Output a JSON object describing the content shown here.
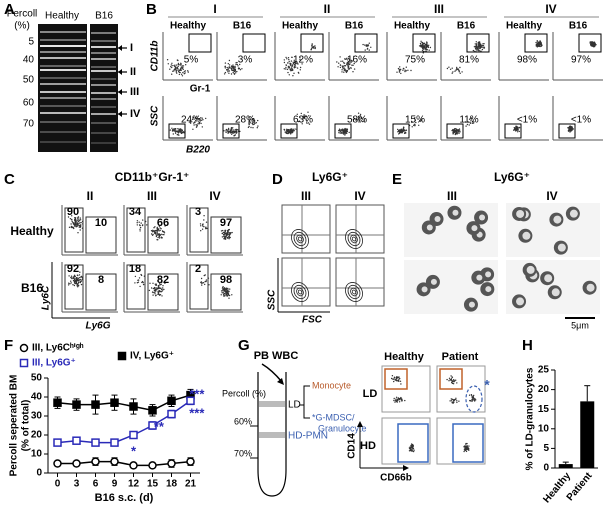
{
  "panel_labels": [
    "A",
    "B",
    "C",
    "D",
    "E",
    "F",
    "G",
    "H"
  ],
  "panel_a": {
    "axis_title": [
      "Percoll",
      "(%)"
    ],
    "percoll_levels": [
      5,
      40,
      50,
      60,
      70
    ],
    "columns": [
      "Healthy",
      "B16"
    ],
    "bands": [
      "I",
      "II",
      "III",
      "IV"
    ]
  },
  "panel_b": {
    "groups": [
      "I",
      "II",
      "III",
      "IV"
    ],
    "columns": [
      "Healthy",
      "B16"
    ],
    "top_axes": {
      "y": "CD11b",
      "x": "Gr-1"
    },
    "bottom_axes": {
      "y": "SSC",
      "x": "B220"
    },
    "top_percentages": [
      [
        "5%",
        "3%"
      ],
      [
        "12%",
        "16%"
      ],
      [
        "75%",
        "81%"
      ],
      [
        "98%",
        "97%"
      ]
    ],
    "bottom_percentages": [
      [
        "24%",
        "28%"
      ],
      [
        "63%",
        "58%"
      ],
      [
        "15%",
        "11%"
      ],
      [
        "<1%",
        "<1%"
      ]
    ]
  },
  "panel_c": {
    "title": "CD11b⁺Gr-1⁺",
    "columns": [
      "II",
      "III",
      "IV"
    ],
    "rows": [
      {
        "name": "Healthy",
        "values": [
          [
            90,
            10
          ],
          [
            34,
            66
          ],
          [
            3,
            97
          ]
        ]
      },
      {
        "name": "B16",
        "values": [
          [
            92,
            8
          ],
          [
            18,
            82
          ],
          [
            2,
            98
          ]
        ]
      }
    ],
    "axes": {
      "y": "Ly6C",
      "x": "Ly6G"
    }
  },
  "panel_d": {
    "title": "Ly6G⁺",
    "columns": [
      "III",
      "IV"
    ],
    "axes": {
      "y": "SSC",
      "x": "FSC"
    }
  },
  "panel_e": {
    "title": "Ly6G⁺",
    "columns": [
      "III",
      "IV"
    ],
    "scale_bar": "5μm"
  },
  "panel_g": {
    "source": "PB WBC",
    "percoll_label": "Percoll (%)",
    "levels": [
      "60%",
      "70%"
    ],
    "fractions": [
      "LD",
      "HD-PMN"
    ],
    "monocyte": "Monocyte",
    "gmdsc": [
      "*G-MDSC/",
      "Granulocyte"
    ],
    "columns": [
      "Healthy",
      "Patient"
    ],
    "rows": [
      "LD",
      "HD"
    ],
    "axes": {
      "y": "CD14",
      "x": "CD66b"
    },
    "marker": "*"
  },
  "chart_data": [
    {
      "type": "line",
      "xlabel": "B16 s.c. (d)",
      "ylabel": [
        "Percoll seperated BM",
        "(% of total)"
      ],
      "x": [
        0,
        3,
        6,
        9,
        12,
        15,
        18,
        21
      ],
      "xlim": [
        -1.5,
        22.5
      ],
      "xticks": [
        0,
        3,
        6,
        9,
        12,
        15,
        18,
        21
      ],
      "ylim": [
        0,
        50
      ],
      "yticks": [
        0,
        10,
        20,
        30,
        40,
        50
      ],
      "legend": "top",
      "series": [
        {
          "name": "III, Ly6Cʰⁱᵍʰ",
          "color": "#000000",
          "marker": "open-circle",
          "values": [
            5,
            5,
            6,
            6,
            4,
            4,
            5,
            6
          ],
          "errors": [
            1,
            1,
            2,
            2,
            1,
            1,
            2,
            2
          ]
        },
        {
          "name": "IV, Ly6G⁺",
          "color": "#000000",
          "marker": "filled-square",
          "values": [
            37,
            36,
            36,
            37,
            35,
            33,
            38,
            41
          ],
          "errors": [
            3,
            3,
            5,
            4,
            4,
            3,
            3,
            3
          ]
        },
        {
          "name": "III, Ly6G⁺",
          "color": "#2a2ab8",
          "marker": "open-square",
          "values": [
            16,
            17,
            16,
            16,
            20,
            25,
            31,
            38
          ],
          "errors": [
            1,
            1,
            1,
            1,
            1,
            2,
            2,
            2
          ]
        }
      ],
      "annotations": [
        {
          "text": "*",
          "x": 12,
          "y": 11,
          "color": "#2a2ab8"
        },
        {
          "text": "**",
          "x": 16,
          "y": 24,
          "color": "#2a2ab8"
        },
        {
          "text": "***",
          "x": 22,
          "y": 31,
          "color": "#2a2ab8"
        },
        {
          "text": "***",
          "x": 22,
          "y": 41,
          "color": "#2a2ab8"
        }
      ]
    },
    {
      "type": "bar",
      "ylabel": "% of LD-granulocytes",
      "categories": [
        "Healthy",
        "Patient"
      ],
      "values": [
        1,
        17
      ],
      "errors": [
        0.5,
        4
      ],
      "color": "#000000",
      "ylim": [
        0,
        25
      ],
      "yticks": [
        0,
        5,
        10,
        15,
        20,
        25
      ]
    }
  ]
}
